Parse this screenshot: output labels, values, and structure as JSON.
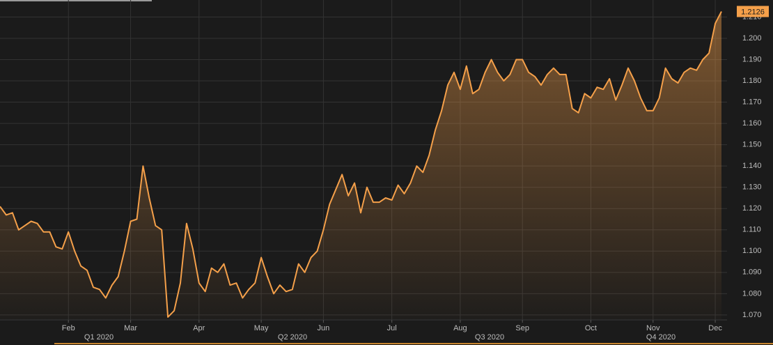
{
  "chart_data": {
    "type": "area-line",
    "color": "#f5a04a",
    "categories": [
      null,
      null,
      null,
      null,
      null,
      null,
      null,
      null,
      null,
      null,
      null,
      "Feb",
      null,
      null,
      null,
      null,
      null,
      null,
      null,
      null,
      null,
      "Mar",
      null,
      null,
      null,
      null,
      null,
      null,
      null,
      null,
      null,
      null,
      "Apr",
      null,
      null,
      null,
      null,
      null,
      null,
      null,
      null,
      null,
      "May",
      null,
      null,
      null,
      null,
      null,
      null,
      null,
      null,
      null,
      "Jun",
      null,
      null,
      null,
      null,
      null,
      null,
      null,
      null,
      null,
      null,
      "Jul",
      null,
      null,
      null,
      null,
      null,
      null,
      null,
      null,
      null,
      null,
      "Aug",
      null,
      null,
      null,
      null,
      null,
      null,
      null,
      null,
      null,
      "Sep",
      null,
      null,
      null,
      null,
      null,
      null,
      null,
      null,
      null,
      null,
      "Oct",
      null,
      null,
      null,
      null,
      null,
      null,
      null,
      null,
      null,
      "Nov",
      null,
      null,
      null,
      null,
      null,
      null,
      null,
      null,
      null,
      "Dec",
      null
    ],
    "values": [
      1.121,
      1.117,
      1.118,
      1.11,
      1.112,
      1.114,
      1.113,
      1.109,
      1.109,
      1.102,
      1.101,
      1.109,
      1.1,
      1.093,
      1.091,
      1.083,
      1.082,
      1.078,
      1.084,
      1.088,
      1.1,
      1.114,
      1.115,
      1.14,
      1.125,
      1.112,
      1.11,
      1.069,
      1.072,
      1.085,
      1.113,
      1.101,
      1.085,
      1.081,
      1.092,
      1.09,
      1.094,
      1.084,
      1.085,
      1.078,
      1.082,
      1.085,
      1.097,
      1.088,
      1.08,
      1.084,
      1.081,
      1.082,
      1.094,
      1.09,
      1.097,
      1.1,
      1.11,
      1.122,
      1.129,
      1.136,
      1.126,
      1.132,
      1.118,
      1.13,
      1.123,
      1.123,
      1.125,
      1.124,
      1.131,
      1.127,
      1.132,
      1.14,
      1.137,
      1.145,
      1.157,
      1.166,
      1.178,
      1.184,
      1.176,
      1.187,
      1.174,
      1.176,
      1.184,
      1.19,
      1.184,
      1.18,
      1.183,
      1.19,
      1.19,
      1.184,
      1.182,
      1.178,
      1.183,
      1.186,
      1.183,
      1.183,
      1.167,
      1.165,
      1.174,
      1.172,
      1.177,
      1.176,
      1.181,
      1.171,
      1.178,
      1.186,
      1.18,
      1.172,
      1.166,
      1.166,
      1.172,
      1.186,
      1.181,
      1.179,
      1.184,
      1.186,
      1.185,
      1.19,
      1.193,
      1.207,
      1.2126
    ],
    "quarters": [
      "Q1 2020",
      "Q2 2020",
      "Q3 2020",
      "Q4 2020"
    ],
    "ylim": [
      1.068,
      1.218
    ],
    "yticks": [
      {
        "value": 1.07,
        "label": "1.070"
      },
      {
        "value": 1.08,
        "label": "1.080"
      },
      {
        "value": 1.09,
        "label": "1.090"
      },
      {
        "value": 1.1,
        "label": "1.100"
      },
      {
        "value": 1.11,
        "label": "1.110"
      },
      {
        "value": 1.12,
        "label": "1.120"
      },
      {
        "value": 1.13,
        "label": "1.130"
      },
      {
        "value": 1.14,
        "label": "1.140"
      },
      {
        "value": 1.15,
        "label": "1.150"
      },
      {
        "value": 1.16,
        "label": "1.160"
      },
      {
        "value": 1.17,
        "label": "1.170"
      },
      {
        "value": 1.18,
        "label": "1.180"
      },
      {
        "value": 1.19,
        "label": "1.190"
      },
      {
        "value": 1.2,
        "label": "1.200"
      },
      {
        "value": 1.21,
        "label": "1.210"
      }
    ],
    "grid": true
  }
}
